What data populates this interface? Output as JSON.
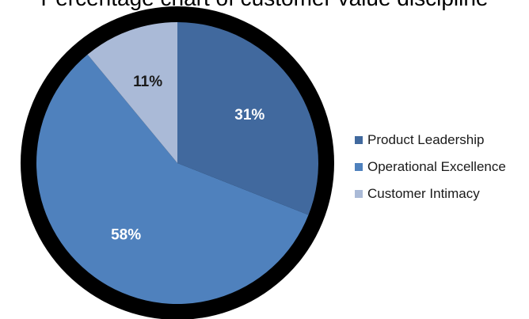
{
  "chart_data": {
    "type": "pie",
    "title": "Percentage chart of customer value discipline",
    "categories": [
      "Product Leadership",
      "Operational Excellence",
      "Customer Intimacy"
    ],
    "values": [
      31,
      58,
      11
    ],
    "data_labels": [
      "31%",
      "58%",
      "11%"
    ],
    "colors": [
      "#41699e",
      "#4f81bd",
      "#aabad7"
    ],
    "legend_position": "right"
  }
}
